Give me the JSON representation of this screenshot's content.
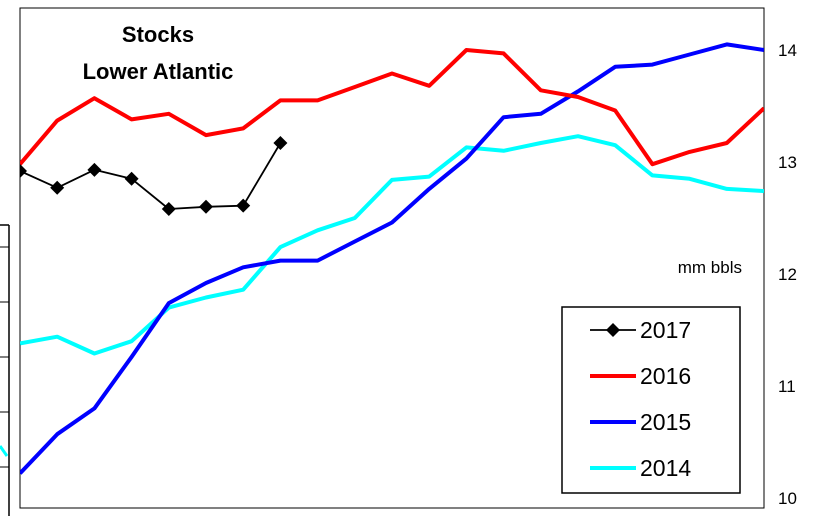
{
  "chart_data": {
    "type": "line",
    "title": [
      "Stocks",
      "Lower Atlantic"
    ],
    "ylabel": "mm bbls",
    "ylim": [
      10,
      14
    ],
    "yticks": [
      "14",
      "13",
      "12",
      "11",
      "10"
    ],
    "grid": false,
    "legend_position": "bottom-right",
    "x_count": 21,
    "series": [
      {
        "name": "2017",
        "color": "#000000",
        "marker": "diamond",
        "values": [
          12.92,
          12.77,
          12.93,
          12.85,
          12.58,
          12.6,
          12.61,
          13.17
        ]
      },
      {
        "name": "2016",
        "color": "#ff0000",
        "marker": "none",
        "values": [
          12.98,
          13.37,
          13.57,
          13.38,
          13.43,
          13.24,
          13.3,
          13.55,
          13.55,
          13.67,
          13.79,
          13.68,
          14.0,
          13.97,
          13.64,
          13.58,
          13.46,
          12.98,
          13.09,
          13.17,
          13.48
        ]
      },
      {
        "name": "2015",
        "color": "#0000ff",
        "marker": "none",
        "values": [
          10.22,
          10.57,
          10.8,
          11.26,
          11.74,
          11.92,
          12.06,
          12.12,
          12.12,
          12.29,
          12.46,
          12.76,
          13.03,
          13.4,
          13.43,
          13.63,
          13.85,
          13.87,
          13.96,
          14.05,
          14.0
        ]
      },
      {
        "name": "2014",
        "color": "#00ffff",
        "marker": "none",
        "values": [
          11.38,
          11.44,
          11.29,
          11.4,
          11.7,
          11.79,
          11.86,
          12.24,
          12.39,
          12.5,
          12.84,
          12.87,
          13.13,
          13.1,
          13.17,
          13.23,
          13.15,
          12.88,
          12.85,
          12.76,
          12.74
        ]
      }
    ]
  }
}
